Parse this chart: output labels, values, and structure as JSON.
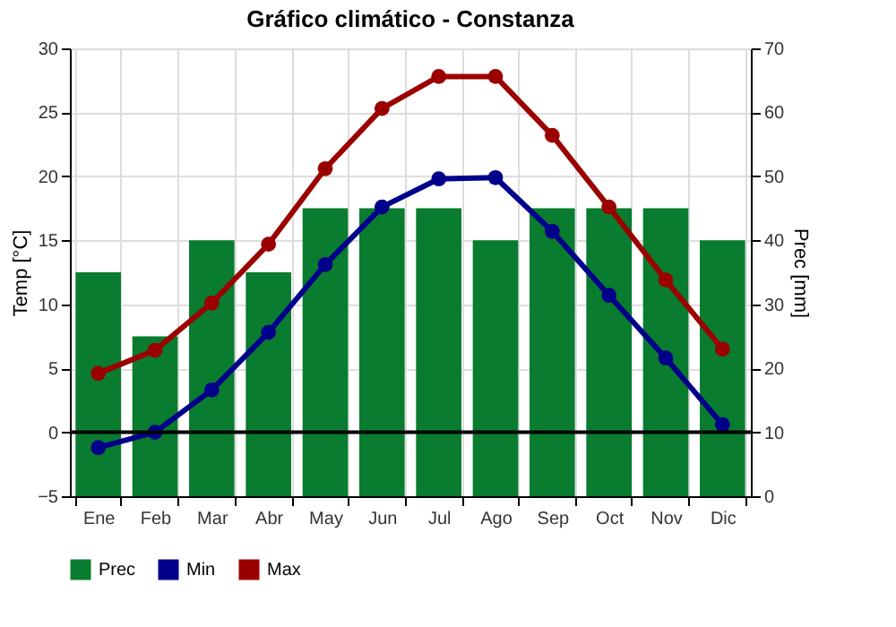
{
  "chart_data": {
    "type": "bar",
    "title": "Gráfico climático - Constanza",
    "ylabel": "Temp [°C]",
    "y2label": "Prec [mm]",
    "categories": [
      "Ene",
      "Feb",
      "Mar",
      "Abr",
      "May",
      "Jun",
      "Jul",
      "Ago",
      "Sep",
      "Oct",
      "Nov",
      "Dic"
    ],
    "series": [
      {
        "name": "Prec",
        "axis": "y2",
        "color": "#097c2f",
        "values": [
          35,
          25,
          40,
          35,
          45,
          45,
          45,
          40,
          45,
          45,
          45,
          40
        ]
      },
      {
        "name": "Min",
        "type": "line",
        "color": "#00008b",
        "values": [
          -1.2,
          0,
          3.3,
          7.8,
          13.1,
          17.6,
          19.8,
          19.9,
          15.7,
          10.7,
          5.8,
          0.6
        ]
      },
      {
        "name": "Max",
        "type": "line",
        "color": "#9b0000",
        "values": [
          4.6,
          6.4,
          10.1,
          14.7,
          20.6,
          25.3,
          27.8,
          27.8,
          23.2,
          17.6,
          11.9,
          6.5
        ]
      }
    ],
    "ylim": [
      -5,
      30
    ],
    "yticks": [
      -5,
      0,
      5,
      10,
      15,
      20,
      25,
      30
    ],
    "y2lim": [
      0,
      70
    ],
    "y2ticks": [
      0,
      10,
      20,
      30,
      40,
      50,
      60,
      70
    ],
    "ref_lines": [
      {
        "axis": "y",
        "value": 0,
        "color": "#000000"
      }
    ],
    "grid": true,
    "legend": "bottom",
    "marker": "circle",
    "line_style": "solid"
  }
}
